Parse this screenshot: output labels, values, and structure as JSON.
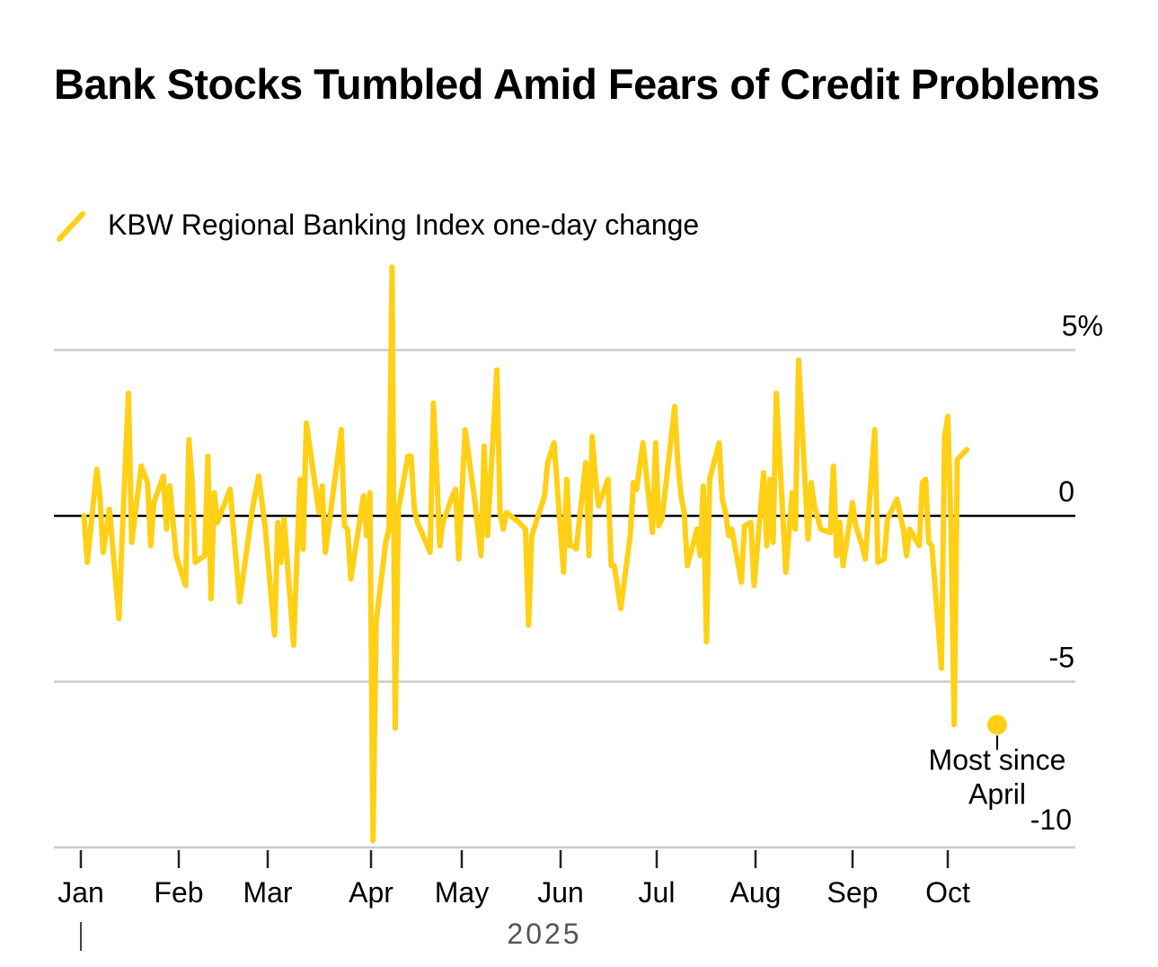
{
  "chart_data": {
    "type": "line",
    "title": "Bank Stocks Tumbled Amid Fears of Credit Problems",
    "legend": [
      {
        "name": "KBW Regional Banking Index one-day change",
        "color": "#FFD015"
      }
    ],
    "legend_position": "top-left",
    "xlabel": "2025",
    "ylabel": "",
    "ylim": [
      -10,
      5
    ],
    "yticks": [
      {
        "value": 5,
        "label": "5%"
      },
      {
        "value": 0,
        "label": "0"
      },
      {
        "value": -5,
        "label": "-5"
      },
      {
        "value": -10,
        "label": "-10"
      }
    ],
    "xticks": [
      {
        "date": "2025-01-01",
        "label": "Jan"
      },
      {
        "date": "2025-02-01",
        "label": "Feb"
      },
      {
        "date": "2025-03-01",
        "label": "Mar"
      },
      {
        "date": "2025-04-01",
        "label": "Apr"
      },
      {
        "date": "2025-05-01",
        "label": "May"
      },
      {
        "date": "2025-06-01",
        "label": "Jun"
      },
      {
        "date": "2025-07-01",
        "label": "Jul"
      },
      {
        "date": "2025-08-01",
        "label": "Aug"
      },
      {
        "date": "2025-09-01",
        "label": "Sep"
      },
      {
        "date": "2025-10-01",
        "label": "Oct"
      }
    ],
    "year_label": "2025",
    "grid": true,
    "annotation": {
      "text_lines": [
        "Most since",
        "April"
      ],
      "date": "2025-10-16",
      "value": -6.3
    },
    "series": [
      {
        "name": "KBW Regional Banking Index one-day change",
        "points": [
          [
            "2025-01-02",
            0.0
          ],
          [
            "2025-01-03",
            -1.4
          ],
          [
            "2025-01-06",
            1.4
          ],
          [
            "2025-01-07",
            0.6
          ],
          [
            "2025-01-08",
            -1.1
          ],
          [
            "2025-01-10",
            0.2
          ],
          [
            "2025-01-13",
            -3.1
          ],
          [
            "2025-01-14",
            -0.6
          ],
          [
            "2025-01-16",
            3.7
          ],
          [
            "2025-01-17",
            -0.8
          ],
          [
            "2025-01-20",
            1.5
          ],
          [
            "2025-01-22",
            1.0
          ],
          [
            "2025-01-23",
            -0.9
          ],
          [
            "2025-01-24",
            0.4
          ],
          [
            "2025-01-27",
            1.2
          ],
          [
            "2025-01-28",
            -0.4
          ],
          [
            "2025-01-29",
            0.9
          ],
          [
            "2025-01-31",
            -1.2
          ],
          [
            "2025-02-03",
            -2.1
          ],
          [
            "2025-02-04",
            2.3
          ],
          [
            "2025-02-05",
            1.1
          ],
          [
            "2025-02-06",
            -1.4
          ],
          [
            "2025-02-09",
            -1.2
          ],
          [
            "2025-02-10",
            1.8
          ],
          [
            "2025-02-11",
            -2.5
          ],
          [
            "2025-02-12",
            0.7
          ],
          [
            "2025-02-13",
            -0.2
          ],
          [
            "2025-02-17",
            0.8
          ],
          [
            "2025-02-20",
            -2.6
          ],
          [
            "2025-02-24",
            0.2
          ],
          [
            "2025-02-26",
            1.2
          ],
          [
            "2025-02-28",
            -0.3
          ],
          [
            "2025-03-03",
            -3.6
          ],
          [
            "2025-03-04",
            -0.2
          ],
          [
            "2025-03-05",
            -1.4
          ],
          [
            "2025-03-06",
            -0.1
          ],
          [
            "2025-03-09",
            -3.9
          ],
          [
            "2025-03-11",
            1.1
          ],
          [
            "2025-03-12",
            -1.0
          ],
          [
            "2025-03-13",
            2.8
          ],
          [
            "2025-03-17",
            0.1
          ],
          [
            "2025-03-18",
            0.9
          ],
          [
            "2025-03-19",
            -1.1
          ],
          [
            "2025-03-24",
            2.6
          ],
          [
            "2025-03-25",
            -0.3
          ],
          [
            "2025-03-26",
            -0.4
          ],
          [
            "2025-03-27",
            -1.9
          ],
          [
            "2025-03-31",
            0.6
          ],
          [
            "2025-04-01",
            -0.6
          ],
          [
            "2025-04-02",
            0.7
          ],
          [
            "2025-04-03",
            -9.8
          ],
          [
            "2025-04-04",
            -3.2
          ],
          [
            "2025-04-07",
            -0.8
          ],
          [
            "2025-04-08",
            -0.4
          ],
          [
            "2025-04-09",
            7.5
          ],
          [
            "2025-04-10",
            -6.4
          ],
          [
            "2025-04-11",
            0.2
          ],
          [
            "2025-04-14",
            1.8
          ],
          [
            "2025-04-15",
            1.8
          ],
          [
            "2025-04-16",
            0.2
          ],
          [
            "2025-04-17",
            -0.2
          ],
          [
            "2025-04-21",
            -1.1
          ],
          [
            "2025-04-22",
            3.4
          ],
          [
            "2025-04-23",
            1.5
          ],
          [
            "2025-04-24",
            -0.9
          ],
          [
            "2025-04-25",
            -0.2
          ],
          [
            "2025-04-28",
            0.6
          ],
          [
            "2025-04-29",
            0.8
          ],
          [
            "2025-04-30",
            -1.3
          ],
          [
            "2025-05-02",
            2.6
          ],
          [
            "2025-05-05",
            0.5
          ],
          [
            "2025-05-07",
            -1.2
          ],
          [
            "2025-05-08",
            2.1
          ],
          [
            "2025-05-09",
            -0.6
          ],
          [
            "2025-05-12",
            4.4
          ],
          [
            "2025-05-13",
            0.1
          ],
          [
            "2025-05-14",
            -0.4
          ],
          [
            "2025-05-15",
            0.1
          ],
          [
            "2025-05-19",
            -0.2
          ],
          [
            "2025-05-21",
            -0.4
          ],
          [
            "2025-05-22",
            -3.3
          ],
          [
            "2025-05-23",
            -0.6
          ],
          [
            "2025-05-27",
            0.6
          ],
          [
            "2025-05-28",
            1.6
          ],
          [
            "2025-05-30",
            2.2
          ],
          [
            "2025-06-02",
            -1.7
          ],
          [
            "2025-06-03",
            1.1
          ],
          [
            "2025-06-04",
            -0.9
          ],
          [
            "2025-06-05",
            -0.9
          ],
          [
            "2025-06-06",
            -1.0
          ],
          [
            "2025-06-09",
            1.6
          ],
          [
            "2025-06-10",
            -1.2
          ],
          [
            "2025-06-11",
            2.4
          ],
          [
            "2025-06-12",
            1.2
          ],
          [
            "2025-06-13",
            0.3
          ],
          [
            "2025-06-16",
            1.1
          ],
          [
            "2025-06-17",
            -1.5
          ],
          [
            "2025-06-18",
            -1.5
          ],
          [
            "2025-06-20",
            -2.8
          ],
          [
            "2025-06-23",
            -0.6
          ],
          [
            "2025-06-24",
            1.0
          ],
          [
            "2025-06-25",
            0.8
          ],
          [
            "2025-06-27",
            2.2
          ],
          [
            "2025-06-30",
            -0.5
          ],
          [
            "2025-07-01",
            2.2
          ],
          [
            "2025-07-02",
            -0.3
          ],
          [
            "2025-07-03",
            -0.1
          ],
          [
            "2025-07-07",
            3.3
          ],
          [
            "2025-07-08",
            1.6
          ],
          [
            "2025-07-09",
            0.6
          ],
          [
            "2025-07-10",
            0.1
          ],
          [
            "2025-07-11",
            -1.5
          ],
          [
            "2025-07-14",
            -0.4
          ],
          [
            "2025-07-15",
            -1.2
          ],
          [
            "2025-07-16",
            0.9
          ],
          [
            "2025-07-17",
            -3.8
          ],
          [
            "2025-07-18",
            1.1
          ],
          [
            "2025-07-21",
            2.2
          ],
          [
            "2025-07-22",
            0.5
          ],
          [
            "2025-07-23",
            0.1
          ],
          [
            "2025-07-24",
            -0.6
          ],
          [
            "2025-07-25",
            -0.4
          ],
          [
            "2025-07-28",
            -2.0
          ],
          [
            "2025-07-29",
            -0.3
          ],
          [
            "2025-07-31",
            -0.2
          ],
          [
            "2025-08-01",
            -2.1
          ],
          [
            "2025-08-04",
            1.3
          ],
          [
            "2025-08-05",
            -0.9
          ],
          [
            "2025-08-06",
            1.1
          ],
          [
            "2025-08-07",
            -0.8
          ],
          [
            "2025-08-08",
            3.7
          ],
          [
            "2025-08-11",
            -1.7
          ],
          [
            "2025-08-13",
            0.7
          ],
          [
            "2025-08-14",
            -0.4
          ],
          [
            "2025-08-15",
            4.7
          ],
          [
            "2025-08-18",
            -0.7
          ],
          [
            "2025-08-19",
            1.0
          ],
          [
            "2025-08-20",
            0.3
          ],
          [
            "2025-08-22",
            -0.4
          ],
          [
            "2025-08-25",
            -0.5
          ],
          [
            "2025-08-26",
            1.5
          ],
          [
            "2025-08-27",
            -1.2
          ],
          [
            "2025-08-28",
            -0.2
          ],
          [
            "2025-08-29",
            -1.5
          ],
          [
            "2025-09-01",
            0.4
          ],
          [
            "2025-09-02",
            -0.3
          ],
          [
            "2025-09-04",
            -0.9
          ],
          [
            "2025-09-05",
            -1.3
          ],
          [
            "2025-09-08",
            2.6
          ],
          [
            "2025-09-09",
            -1.4
          ],
          [
            "2025-09-11",
            -1.3
          ],
          [
            "2025-09-12",
            -0.1
          ],
          [
            "2025-09-15",
            0.5
          ],
          [
            "2025-09-17",
            -0.4
          ],
          [
            "2025-09-18",
            -1.2
          ],
          [
            "2025-09-19",
            -0.4
          ],
          [
            "2025-09-22",
            -0.9
          ],
          [
            "2025-09-23",
            1.0
          ],
          [
            "2025-09-24",
            1.1
          ],
          [
            "2025-09-25",
            -0.8
          ],
          [
            "2025-09-26",
            -0.9
          ],
          [
            "2025-09-29",
            -4.6
          ],
          [
            "2025-09-30",
            2.4
          ],
          [
            "2025-10-01",
            3.0
          ],
          [
            "2025-10-02",
            -0.2
          ],
          [
            "2025-10-03",
            -6.3
          ],
          [
            "2025-10-04",
            1.7
          ],
          [
            "2025-10-07",
            2.0
          ]
        ]
      }
    ]
  },
  "accent_color": "#FFD015"
}
